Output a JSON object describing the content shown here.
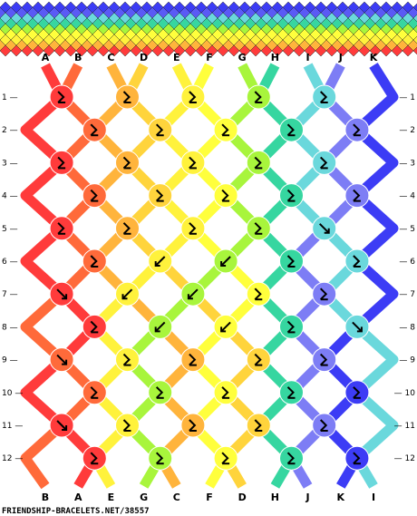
{
  "credit": "FRIENDSHIP-BRACELETS.NET/38557",
  "strands": [
    {
      "label": "A",
      "color": "#ff3b3b"
    },
    {
      "label": "B",
      "color": "#ff6a3a"
    },
    {
      "label": "C",
      "color": "#ffb43c"
    },
    {
      "label": "D",
      "color": "#ffd43c"
    },
    {
      "label": "E",
      "color": "#fff23c"
    },
    {
      "label": "F",
      "color": "#ffff3c"
    },
    {
      "label": "G",
      "color": "#a8f53c"
    },
    {
      "label": "H",
      "color": "#36d6a0"
    },
    {
      "label": "I",
      "color": "#6ad8dc"
    },
    {
      "label": "J",
      "color": "#7d7df5"
    },
    {
      "label": "K",
      "color": "#3c3cf5"
    }
  ],
  "rows": [
    "1",
    "2",
    "3",
    "4",
    "5",
    "6",
    "7",
    "8",
    "9",
    "10",
    "11",
    "12"
  ],
  "knots": [
    [
      "fb",
      "fb",
      "fb",
      "fb",
      "fb"
    ],
    [
      "fb",
      "fb",
      "fb",
      "fb",
      "fb"
    ],
    [
      "fb",
      "fb",
      "fb",
      "fb",
      "fb"
    ],
    [
      "fb",
      "fb",
      "fb",
      "fb",
      "fb"
    ],
    [
      "fb",
      "fb",
      "fb",
      "fb",
      "f"
    ],
    [
      "fb",
      "b",
      "b",
      "fb",
      "fb"
    ],
    [
      "f",
      "b",
      "b",
      "fb",
      "fb"
    ],
    [
      "fb",
      "b",
      "b",
      "fb",
      "f"
    ],
    [
      "f",
      "fb",
      "fb",
      "fb",
      "fb"
    ],
    [
      "fb",
      "fb",
      "fb",
      "fb",
      "fb"
    ],
    [
      "f",
      "fb",
      "fb",
      "fb",
      "fb"
    ],
    [
      "fb",
      "fb",
      "fb",
      "fb",
      "fb"
    ]
  ]
}
